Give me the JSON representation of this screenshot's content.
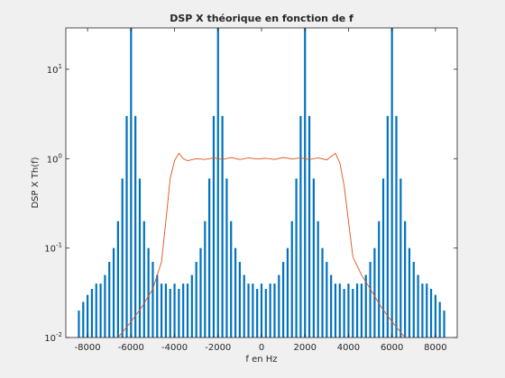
{
  "chart_data": {
    "type": "stem-line",
    "title": "DSP X théorique en fonction de f",
    "xlabel": "f en Hz",
    "ylabel": "DSP X Th(f)",
    "ylog": true,
    "xlim": [
      -9000,
      9000
    ],
    "ylim": [
      0.01,
      29
    ],
    "xticks": [
      -8000,
      -6000,
      -4000,
      -2000,
      0,
      2000,
      4000,
      6000,
      8000
    ],
    "yticks": [
      {
        "value": 0.01,
        "label": "10^-2"
      },
      {
        "value": 0.1,
        "label": "10^-1"
      },
      {
        "value": 1,
        "label": "10^0"
      },
      {
        "value": 10,
        "label": "10^1"
      }
    ],
    "series": [
      {
        "style": "stem",
        "color": "#0072bd",
        "x": [
          -8400,
          -8200,
          -8000,
          -7800,
          -7600,
          -7400,
          -7200,
          -7000,
          -6800,
          -6600,
          -6400,
          -6200,
          -6000,
          -5800,
          -5600,
          -5400,
          -5200,
          -5000,
          -4800,
          -4600,
          -4400,
          -4200,
          -4000,
          -3800,
          -3600,
          -3400,
          -3200,
          -3000,
          -2800,
          -2600,
          -2400,
          -2200,
          -2000,
          -1800,
          -1600,
          -1400,
          -1200,
          -1000,
          -800,
          -600,
          -400,
          -200,
          0,
          200,
          400,
          600,
          800,
          1000,
          1200,
          1400,
          1600,
          1800,
          2000,
          2200,
          2400,
          2600,
          2800,
          3000,
          3200,
          3400,
          3600,
          3800,
          4000,
          4200,
          4400,
          4600,
          4800,
          5000,
          5200,
          5400,
          5600,
          5800,
          6000,
          6200,
          6400,
          6600,
          6800,
          7000,
          7200,
          7400,
          7600,
          7800,
          8000,
          8200,
          8400
        ],
        "values": [
          0.02,
          0.025,
          0.03,
          0.035,
          0.04,
          0.04,
          0.05,
          0.07,
          0.1,
          0.2,
          0.6,
          3,
          40,
          3,
          0.6,
          0.2,
          0.1,
          0.07,
          0.05,
          0.04,
          0.04,
          0.035,
          0.04,
          0.035,
          0.04,
          0.04,
          0.05,
          0.07,
          0.1,
          0.2,
          0.6,
          3,
          40,
          3,
          0.6,
          0.2,
          0.1,
          0.07,
          0.05,
          0.04,
          0.04,
          0.035,
          0.04,
          0.035,
          0.04,
          0.04,
          0.05,
          0.07,
          0.1,
          0.2,
          0.6,
          3,
          40,
          3,
          0.6,
          0.2,
          0.1,
          0.07,
          0.05,
          0.04,
          0.04,
          0.035,
          0.04,
          0.035,
          0.04,
          0.04,
          0.05,
          0.07,
          0.1,
          0.2,
          0.6,
          3,
          40,
          3,
          0.6,
          0.2,
          0.1,
          0.07,
          0.05,
          0.04,
          0.04,
          0.035,
          0.03,
          0.025,
          0.02
        ]
      },
      {
        "style": "line",
        "color": "#d95319",
        "x": [
          -6600,
          -6000,
          -5500,
          -5000,
          -4600,
          -4400,
          -4200,
          -4000,
          -3800,
          -3600,
          -3400,
          -3000,
          -2600,
          -2200,
          -1800,
          -1400,
          -1000,
          -600,
          -200,
          200,
          600,
          1000,
          1400,
          1800,
          2200,
          2600,
          3000,
          3400,
          3600,
          3800,
          4000,
          4200,
          4600,
          5000,
          5500,
          6000,
          6600
        ],
        "values": [
          0.01,
          0.015,
          0.022,
          0.035,
          0.07,
          0.2,
          0.6,
          0.95,
          1.15,
          1.0,
          0.95,
          1.0,
          0.98,
          1.02,
          0.98,
          1.03,
          0.98,
          1.02,
          0.99,
          1.01,
          0.98,
          1.03,
          0.99,
          1.02,
          0.98,
          1.02,
          0.97,
          1.15,
          0.9,
          0.5,
          0.2,
          0.08,
          0.05,
          0.035,
          0.022,
          0.015,
          0.01
        ]
      }
    ]
  }
}
